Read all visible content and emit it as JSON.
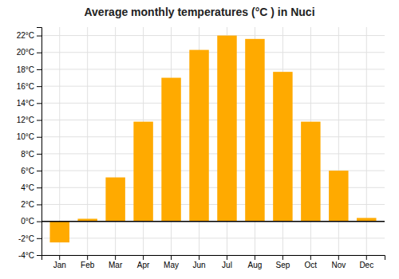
{
  "chart_data": {
    "type": "bar",
    "title": "Average monthly temperatures (°C ) in Nuci",
    "categories": [
      "Jan",
      "Feb",
      "Mar",
      "Apr",
      "May",
      "Jun",
      "Jul",
      "Aug",
      "Sep",
      "Oct",
      "Nov",
      "Dec"
    ],
    "values": [
      -2.5,
      0.3,
      5.2,
      11.8,
      17.0,
      20.3,
      22.0,
      21.6,
      17.7,
      11.8,
      6.0,
      0.4
    ],
    "color": "#FFAA00",
    "ylim": [
      -4,
      23
    ],
    "yticks": [
      {
        "value": -4,
        "label": "-4°C"
      },
      {
        "value": -2,
        "label": "-2°C"
      },
      {
        "value": 0,
        "label": "0°C"
      },
      {
        "value": 2,
        "label": "2°C"
      },
      {
        "value": 4,
        "label": "4°C"
      },
      {
        "value": 6,
        "label": "6°C"
      },
      {
        "value": 8,
        "label": "8°C"
      },
      {
        "value": 10,
        "label": "10°C"
      },
      {
        "value": 12,
        "label": "12°C"
      },
      {
        "value": 14,
        "label": "14°C"
      },
      {
        "value": 16,
        "label": "16°C"
      },
      {
        "value": 18,
        "label": "18°C"
      },
      {
        "value": 20,
        "label": "20°C"
      },
      {
        "value": 22,
        "label": "22°C"
      }
    ],
    "grid": true
  }
}
